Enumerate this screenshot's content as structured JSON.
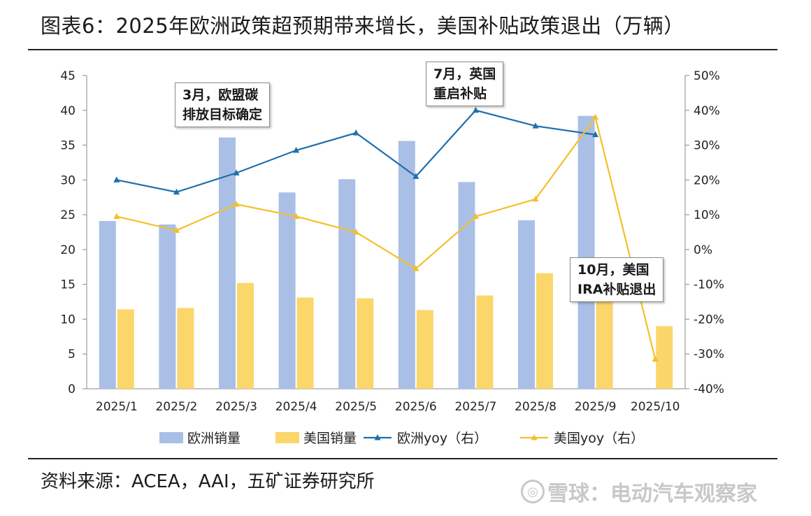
{
  "title": "图表6：2025年欧洲政策超预期带来增长，美国补贴政策退出（万辆）",
  "source": "资料来源：ACEA，AAI，五矿证券研究所",
  "watermark": "雪球：电动汽车观察家",
  "watermark_icon": "snowball-logo-icon",
  "chart_data": {
    "type": "bar",
    "categories": [
      "2025/1",
      "2025/2",
      "2025/3",
      "2025/4",
      "2025/5",
      "2025/6",
      "2025/7",
      "2025/8",
      "2025/9",
      "2025/10"
    ],
    "ylim_left": [
      0,
      45
    ],
    "yticks_left": [
      "0",
      "5",
      "10",
      "15",
      "20",
      "25",
      "30",
      "35",
      "40",
      "45"
    ],
    "ylim_right": [
      -40,
      50
    ],
    "yticks_right": [
      "-40%",
      "-30%",
      "-20%",
      "-10%",
      "0%",
      "10%",
      "20%",
      "30%",
      "40%",
      "50%"
    ],
    "grid": false,
    "legend_position": "bottom",
    "series": [
      {
        "name": "欧洲销量",
        "kind": "bar",
        "axis": "left",
        "color": "#a9bfe6",
        "values": [
          24.1,
          23.6,
          36.1,
          28.2,
          30.1,
          35.6,
          29.7,
          24.2,
          39.2,
          null
        ]
      },
      {
        "name": "美国销量",
        "kind": "bar",
        "axis": "left",
        "color": "#fbd66a",
        "values": [
          11.4,
          11.6,
          15.2,
          13.1,
          13.0,
          11.3,
          13.4,
          16.6,
          16.9,
          9.0
        ]
      },
      {
        "name": "欧洲yoy（右）",
        "kind": "line",
        "axis": "right",
        "color": "#1f6fad",
        "values": [
          20,
          16.5,
          22,
          28.5,
          33.5,
          21,
          40,
          35.5,
          33,
          null
        ]
      },
      {
        "name": "美国yoy（右）",
        "kind": "line",
        "axis": "right",
        "color": "#f4bf2a",
        "values": [
          9.5,
          5.5,
          13,
          9.5,
          5,
          -5.5,
          9.5,
          14.5,
          38,
          -31.5
        ]
      }
    ],
    "annotations": [
      {
        "line1": "3月，欧盟碳",
        "line2": "排放目标确定"
      },
      {
        "line1": "7月，英国",
        "line2": "重启补贴"
      },
      {
        "line1": "10月，美国",
        "line2": "IRA补贴退出"
      }
    ]
  }
}
